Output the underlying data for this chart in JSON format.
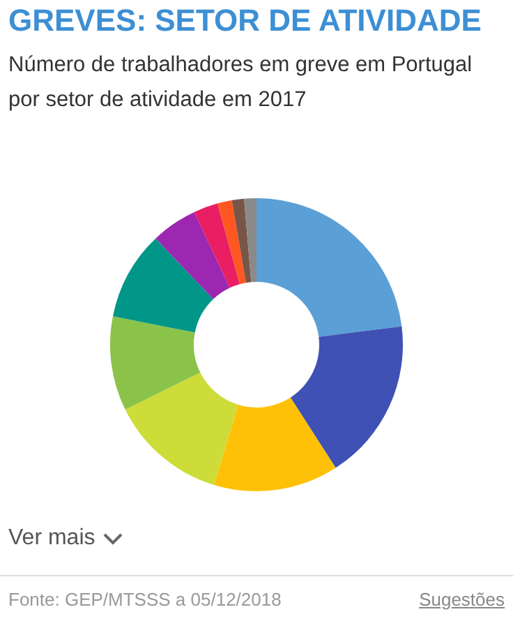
{
  "chart_data": {
    "type": "donut",
    "title": "GREVES: SETOR DE ATIVIDADE",
    "subtitle": "Número de trabalhadores em greve em Portugal por setor de atividade em 2017",
    "categories": [
      null,
      null,
      null,
      null,
      null,
      null,
      null,
      null,
      null,
      null,
      null
    ],
    "values": [
      23,
      17.9,
      13.8,
      13,
      10.4,
      9.8,
      5.1,
      2.7,
      1.6,
      1.35,
      1.35
    ],
    "colors": [
      "#5a9fd6",
      "#3f51b5",
      "#ffc107",
      "#cddc39",
      "#8bc34a",
      "#009688",
      "#9c27b0",
      "#e91e63",
      "#ff5722",
      "#795548",
      "#8a8a8a"
    ],
    "annotations": [
      "Ver mais",
      "Fonte: GEP/MTSSS a 05/12/2018",
      "Sugestões"
    ]
  }
}
